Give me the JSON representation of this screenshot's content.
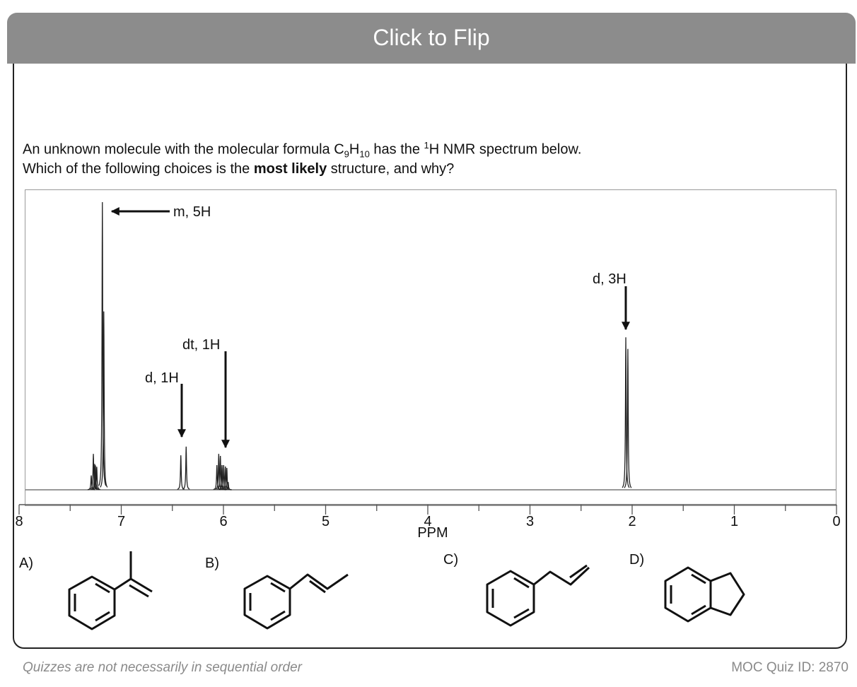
{
  "header": {
    "flip_label": "Click to Flip"
  },
  "question": {
    "line1_pre": "An unknown molecule with the molecular formula C",
    "formula_c_sub": "9",
    "formula_h": "H",
    "formula_h_sub": "10",
    "line1_mid": " has the ",
    "nucleus_sup": "1",
    "line1_post": "H NMR spectrum below.",
    "line2_pre": "Which of the following choices is the ",
    "line2_bold": "most likely",
    "line2_post": " structure, and why?"
  },
  "chart_data": {
    "type": "line",
    "title": "",
    "xlabel": "PPM",
    "ylabel": "",
    "xlim": [
      8,
      0
    ],
    "x_reversed": true,
    "x_ticks": [
      "8",
      "7",
      "6",
      "5",
      "4",
      "3",
      "2",
      "1",
      "0"
    ],
    "grid": false,
    "peaks": [
      {
        "ppm": 7.294,
        "intensity": 0.05
      },
      {
        "ppm": 7.273,
        "intensity": 0.125
      },
      {
        "ppm": 7.26,
        "intensity": 0.09
      },
      {
        "ppm": 7.253,
        "intensity": 0.085
      },
      {
        "ppm": 7.24,
        "intensity": 0.08
      },
      {
        "ppm": 7.185,
        "intensity": 1.0
      },
      {
        "ppm": 7.171,
        "intensity": 0.62
      },
      {
        "ppm": 6.417,
        "intensity": 0.12
      },
      {
        "ppm": 6.365,
        "intensity": 0.15
      },
      {
        "ppm": 6.064,
        "intensity": 0.086
      },
      {
        "ppm": 6.046,
        "intensity": 0.125
      },
      {
        "ppm": 6.03,
        "intensity": 0.118
      },
      {
        "ppm": 6.014,
        "intensity": 0.086
      },
      {
        "ppm": 5.998,
        "intensity": 0.086
      },
      {
        "ppm": 5.981,
        "intensity": 0.081
      },
      {
        "ppm": 5.967,
        "intensity": 0.076
      },
      {
        "ppm": 5.954,
        "intensity": 0.027
      },
      {
        "ppm": 2.062,
        "intensity": 0.53
      },
      {
        "ppm": 2.042,
        "intensity": 0.49
      }
    ],
    "annotations": [
      {
        "text": "m, 5H"
      },
      {
        "text": "d, 1H"
      },
      {
        "text": "dt, 1H"
      },
      {
        "text": "d, 3H"
      }
    ]
  },
  "choices": [
    {
      "label": "A)"
    },
    {
      "label": "B)"
    },
    {
      "label": "C)"
    },
    {
      "label": "D)"
    }
  ],
  "footer": {
    "note": "Quizzes are not necessarily in sequential order",
    "quiz_id": "MOC Quiz ID: 2870"
  }
}
